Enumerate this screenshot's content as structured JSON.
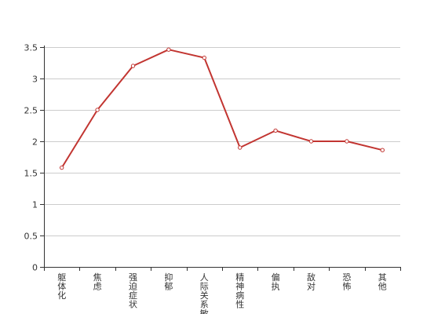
{
  "chart_data": {
    "type": "line",
    "title": "",
    "xlabel": "",
    "ylabel": "",
    "categories": [
      "躯体化",
      "焦虑",
      "强迫症状",
      "抑郁",
      "人际关系敏感",
      "精神病性",
      "偏执",
      "敌对",
      "恐怖",
      "其他"
    ],
    "series": [
      {
        "values": [
          1.58,
          2.5,
          3.2,
          3.46,
          3.33,
          1.9,
          2.17,
          2.0,
          2.0,
          1.86
        ]
      }
    ],
    "ylim": [
      0,
      3.5
    ],
    "yticks": [
      "0",
      "0.5",
      "1",
      "1.5",
      "2",
      "2.5",
      "3",
      "3.5"
    ],
    "grid": true,
    "colors": {
      "line": "#c23531",
      "marker_fill": "#ffffff",
      "grid": "#cccccc",
      "axis": "#333333"
    }
  }
}
